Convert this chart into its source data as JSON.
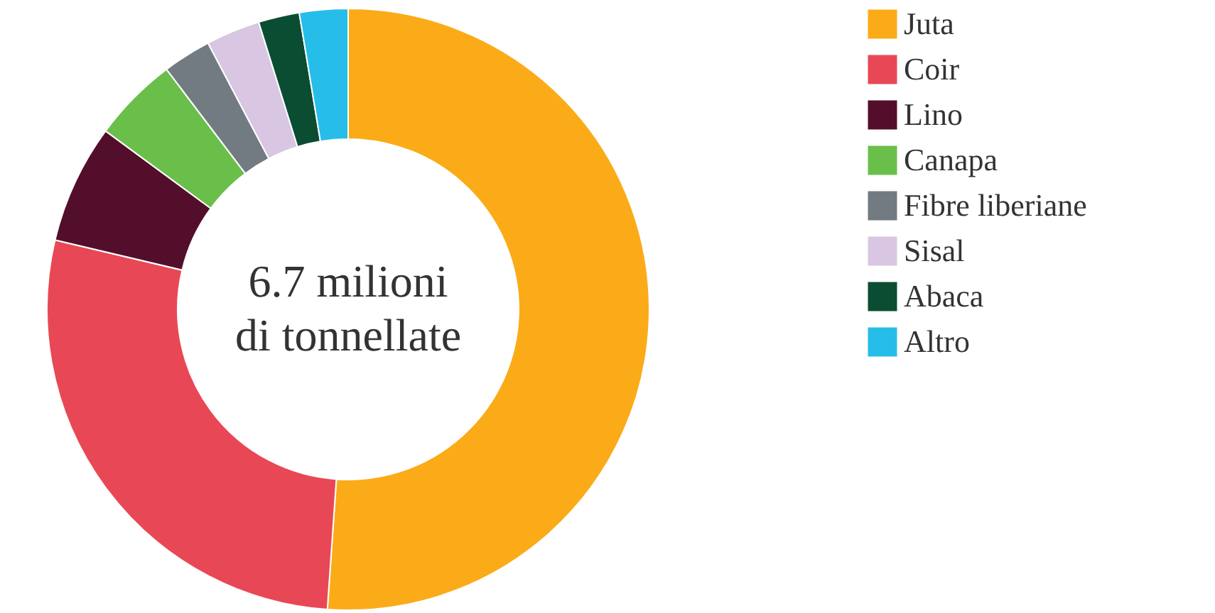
{
  "chart_data": {
    "type": "donut",
    "categories": [
      "Juta",
      "Coir",
      "Lino",
      "Canapa",
      "Fibre liberiane",
      "Sisal",
      "Abaca",
      "Altro"
    ],
    "values": [
      51.1,
      27.6,
      6.4,
      4.6,
      2.6,
      2.9,
      2.2,
      2.6
    ],
    "colors": [
      "#fbab18",
      "#e84855",
      "#530e2b",
      "#6abf4b",
      "#737b82",
      "#d8c6e2",
      "#0a4d32",
      "#27bde9"
    ],
    "annotations": [
      "6.7 milioni",
      "di tonnellate"
    ],
    "legend": "right"
  }
}
